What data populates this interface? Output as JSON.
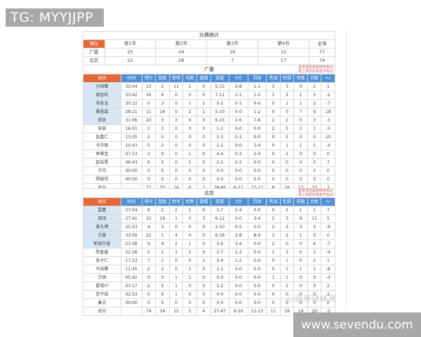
{
  "banners": {
    "tg_label": "TG: MYYJJPP",
    "site_label": "www.sevendu.com"
  },
  "watermark_text": "心迎理球体育",
  "note_lines": {
    "line1": "首发球员蓝色底色标记",
    "line2": "场上球员红色名字标记"
  },
  "score_table": {
    "title": "比赛统计",
    "columns": [
      "球队",
      "第1节",
      "第2节",
      "第3节",
      "第4节",
      "全场"
    ],
    "rows": [
      {
        "name": "广厦",
        "stats": [
          "25",
          "24",
          "16",
          "12",
          "77"
        ]
      },
      {
        "name": "北京",
        "stats": [
          "22",
          "28",
          "7",
          "17",
          "74"
        ]
      }
    ]
  },
  "player_columns": [
    "球员",
    "时间",
    "得分",
    "篮板",
    "助攻",
    "抢断",
    "盖帽",
    "投篮",
    "3分",
    "罚球",
    "失误",
    "犯规",
    "前板",
    "后板",
    "+/-"
  ],
  "teams": [
    {
      "title": "广厦",
      "players": [
        {
          "name": "孙铭徽",
          "starter": true,
          "stats": [
            "32:04",
            "13",
            "2",
            "11",
            "1",
            "0",
            "5-15",
            "2-8",
            "1-1",
            "3",
            "3",
            "0",
            "2",
            "1"
          ]
        },
        {
          "name": "胡金秋",
          "starter": true,
          "stats": [
            "23:42",
            "16",
            "6",
            "0",
            "0",
            "0",
            "7-11",
            "1-1",
            "1-2",
            "1",
            "2",
            "1",
            "5",
            "-2"
          ]
        },
        {
          "name": "朱俊龙",
          "starter": true,
          "stats": [
            "30:12",
            "0",
            "3",
            "0",
            "1",
            "1",
            "0-2",
            "0-1",
            "0-0",
            "0",
            "1",
            "1",
            "2",
            "-7"
          ]
        },
        {
          "name": "桑普森",
          "starter": true,
          "stats": [
            "28:11",
            "11",
            "16",
            "0",
            "2",
            "1",
            "5-10",
            "0-0",
            "1-2",
            "0",
            "0",
            "7",
            "9",
            "18"
          ]
        },
        {
          "name": "塔奇",
          "starter": true,
          "stats": [
            "31:06",
            "20",
            "3",
            "3",
            "0",
            "0",
            "6-15",
            "1-6",
            "7-8",
            "2",
            "2",
            "0",
            "3",
            "-3"
          ]
        },
        {
          "name": "吴骁",
          "stats": [
            "16:51",
            "2",
            "3",
            "0",
            "0",
            "0",
            "1-2",
            "0-0",
            "0-0",
            "2",
            "5",
            "2",
            "1",
            "-5"
          ]
        },
        {
          "name": "赵嘉仁",
          "stats": [
            "13:05",
            "2",
            "0",
            "0",
            "0",
            "0",
            "1-3",
            "0-1",
            "0-0",
            "0",
            "2",
            "0",
            "0",
            "10"
          ]
        },
        {
          "name": "卡尔顿",
          "stats": [
            "10:43",
            "5",
            "2",
            "0",
            "0",
            "0",
            "1-2",
            "0-0",
            "3-4",
            "0",
            "1",
            "1",
            "1",
            "-4"
          ]
        },
        {
          "name": "林秉圣",
          "stats": [
            "07:23",
            "2",
            "0",
            "0",
            "1",
            "0",
            "0-4",
            "0-3",
            "2-4",
            "0",
            "2",
            "0",
            "0",
            "0"
          ]
        },
        {
          "name": "赵岩昊",
          "stats": [
            "06:43",
            "6",
            "0",
            "0",
            "1",
            "0",
            "2-2",
            "2-2",
            "0-0",
            "0",
            "0",
            "0",
            "0",
            "7"
          ]
        },
        {
          "name": "许可",
          "stats": [
            "00:00",
            "0",
            "0",
            "0",
            "0",
            "0",
            "0-0",
            "0-0",
            "0-0",
            "0",
            "0",
            "0",
            "0",
            "0"
          ]
        },
        {
          "name": "缪峻伟",
          "stats": [
            "00:00",
            "0",
            "0",
            "0",
            "0",
            "0",
            "0-0",
            "0-0",
            "0-0",
            "0",
            "0",
            "0",
            "0",
            "0"
          ]
        },
        {
          "name": "总分",
          "total": true,
          "stats": [
            "",
            "77",
            "35",
            "14",
            "6",
            "2",
            "28-66",
            "6-22",
            "15-21",
            "8",
            "18",
            "12",
            "23",
            "3"
          ]
        }
      ]
    },
    {
      "title": "北京",
      "players": [
        {
          "name": "雷蒙",
          "starter": true,
          "stats": [
            "27:54",
            "8",
            "2",
            "2",
            "1",
            "0",
            "3-7",
            "2-4",
            "0-0",
            "0",
            "2",
            "1",
            "1",
            "7"
          ]
        },
        {
          "name": "周琦",
          "starter": true,
          "stats": [
            "27:41",
            "15",
            "19",
            "1",
            "0",
            "3",
            "6-12",
            "0-0",
            "3-4",
            "2",
            "3",
            "8",
            "11",
            "5"
          ]
        },
        {
          "name": "曾凡博",
          "starter": true,
          "stats": [
            "25:53",
            "4",
            "3",
            "0",
            "0",
            "0",
            "2-10",
            "0-5",
            "0-0",
            "2",
            "3",
            "3",
            "0",
            "-9"
          ]
        },
        {
          "name": "杰曼",
          "starter": true,
          "stats": [
            "33:56",
            "22",
            "1",
            "4",
            "0",
            "0",
            "6-18",
            "2-8",
            "8-9",
            "3",
            "3",
            "1",
            "0",
            "0"
          ]
        },
        {
          "name": "斯佩尔曼",
          "starter": true,
          "stats": [
            "21:08",
            "9",
            "4",
            "2",
            "1",
            "0",
            "3-6",
            "3-4",
            "0-0",
            "2",
            "0",
            "0",
            "4",
            "-7"
          ]
        },
        {
          "name": "陈盈骏",
          "stats": [
            "22:26",
            "5",
            "1",
            "3",
            "1",
            "0",
            "2-7",
            "1-3",
            "0-0",
            "1",
            "3",
            "0",
            "1",
            "-4"
          ]
        },
        {
          "name": "张才仁",
          "stats": [
            "17:23",
            "7",
            "2",
            "0",
            "0",
            "1",
            "3-4",
            "1-2",
            "0-0",
            "0",
            "1",
            "0",
            "2",
            "1"
          ]
        },
        {
          "name": "马泳腾",
          "stats": [
            "11:45",
            "2",
            "2",
            "0",
            "1",
            "0",
            "1-1",
            "0-0",
            "0-0",
            "0",
            "1",
            "1",
            "1",
            "-8"
          ]
        },
        {
          "name": "方硕",
          "stats": [
            "05:42",
            "0",
            "0",
            "1",
            "1",
            "0",
            "0-0",
            "0-0",
            "0-0",
            "1",
            "1",
            "0",
            "0",
            "-4"
          ]
        },
        {
          "name": "翟晓川",
          "stats": [
            "03:17",
            "2",
            "0",
            "1",
            "0",
            "0",
            "1-2",
            "0-0",
            "0-0",
            "0",
            "2",
            "0",
            "0",
            "2"
          ]
        },
        {
          "name": "范子铭",
          "stats": [
            "02:53",
            "0",
            "0",
            "1",
            "0",
            "0",
            "0-0",
            "0-0",
            "0-0",
            "0",
            "0",
            "0",
            "0",
            "2"
          ]
        },
        {
          "name": "秦文",
          "stats": [
            "00:00",
            "0",
            "0",
            "0",
            "0",
            "0",
            "0-0",
            "0-0",
            "0-0",
            "0",
            "0",
            "0",
            "0",
            "0"
          ]
        },
        {
          "name": "总分",
          "total": true,
          "stats": [
            "",
            "74",
            "34",
            "15",
            "5",
            "4",
            "27-67",
            "9-26",
            "11-13",
            "11",
            "19",
            "14",
            "20",
            "-3"
          ]
        }
      ]
    }
  ],
  "colors": {
    "banner_gray": "#a8a8a8",
    "header_blue": "#4f8fd8",
    "accent_orange": "#e5683a",
    "starter_blue_bg": "#d8e7f6",
    "note_red": "#c05a56",
    "border_gray": "#d9d9d9"
  }
}
